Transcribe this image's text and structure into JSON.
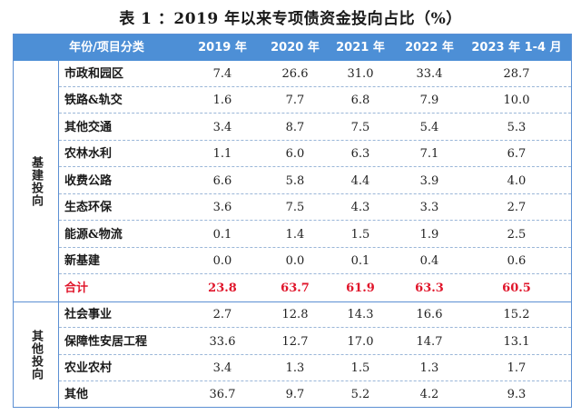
{
  "title": "表 1 ：2019 年以来专项债资金投向占比（%）",
  "header": {
    "category": "年份/项目分类",
    "years": [
      "2019 年",
      "2020 年",
      "2021 年",
      "2022 年",
      "2023 年 1-4 月"
    ]
  },
  "groups": [
    {
      "label": "基建投向",
      "rows": [
        {
          "name": "市政和园区",
          "values": [
            "7.4",
            "26.6",
            "31.0",
            "33.4",
            "28.7"
          ]
        },
        {
          "name": "铁路&轨交",
          "values": [
            "1.6",
            "7.7",
            "6.8",
            "7.9",
            "10.0"
          ]
        },
        {
          "name": "其他交通",
          "values": [
            "3.4",
            "8.7",
            "7.5",
            "5.4",
            "5.3"
          ]
        },
        {
          "name": "农林水利",
          "values": [
            "1.1",
            "6.0",
            "6.3",
            "7.1",
            "6.7"
          ]
        },
        {
          "name": "收费公路",
          "values": [
            "6.6",
            "5.8",
            "4.4",
            "3.9",
            "4.0"
          ]
        },
        {
          "name": "生态环保",
          "values": [
            "3.6",
            "7.5",
            "4.3",
            "3.3",
            "2.7"
          ]
        },
        {
          "name": "能源&物流",
          "values": [
            "0.1",
            "1.4",
            "1.5",
            "1.9",
            "2.5"
          ]
        },
        {
          "name": "新基建",
          "values": [
            "0.0",
            "0.0",
            "0.1",
            "0.4",
            "0.6"
          ]
        },
        {
          "name": "合计",
          "values": [
            "23.8",
            "63.7",
            "61.9",
            "63.3",
            "60.5"
          ],
          "total": true
        }
      ]
    },
    {
      "label": "其他投向",
      "rows": [
        {
          "name": "社会事业",
          "values": [
            "2.7",
            "12.8",
            "14.3",
            "16.6",
            "15.2"
          ]
        },
        {
          "name": "保障性安居工程",
          "values": [
            "33.6",
            "12.7",
            "17.0",
            "14.7",
            "13.1"
          ]
        },
        {
          "name": "农业农村",
          "values": [
            "3.4",
            "1.3",
            "1.5",
            "1.3",
            "1.7"
          ]
        },
        {
          "name": "其他",
          "values": [
            "36.7",
            "9.7",
            "5.2",
            "4.2",
            "9.3"
          ]
        }
      ]
    }
  ],
  "colors": {
    "header_bg": "#4d8fd6",
    "total_text": "#e0162b",
    "border": "#5b8fd3"
  }
}
